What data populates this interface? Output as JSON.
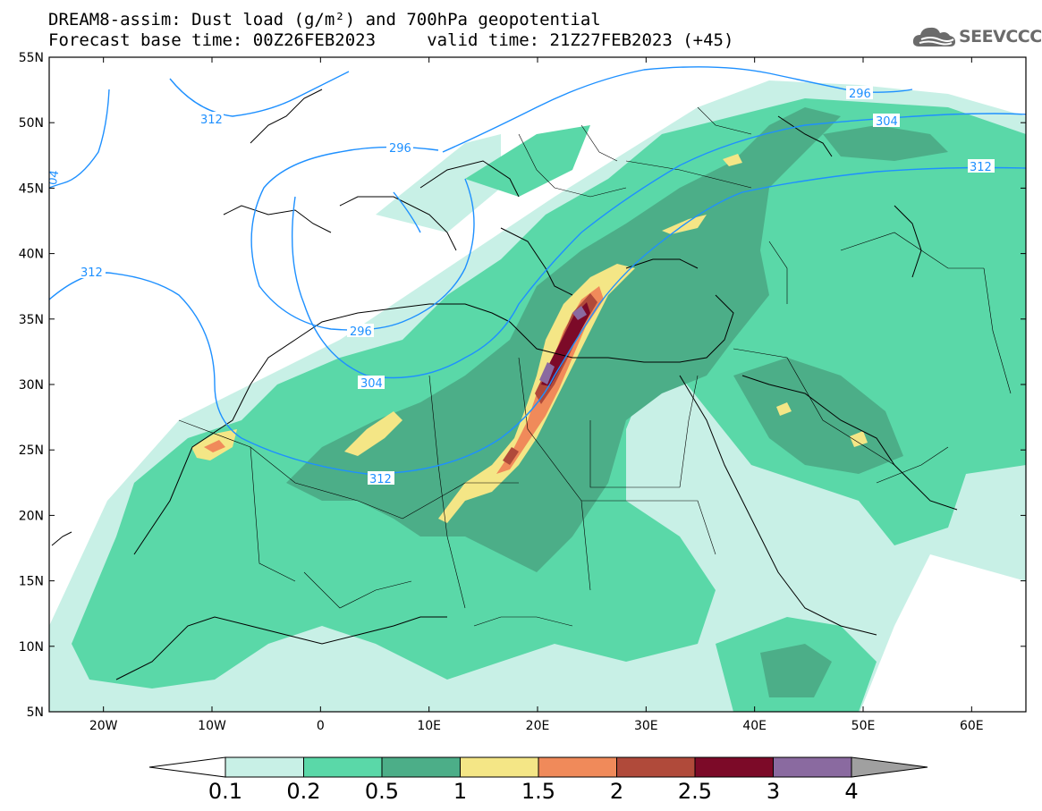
{
  "header": {
    "title": "DREAM8-assim: Dust load (g/m²) and 700hPa geopotential",
    "time_line": "Forecast base time: 00Z26FEB2023     valid time: 21Z27FEB2023 (+45)",
    "logo_text": "SEEVCCC"
  },
  "map": {
    "lon_range": [
      -25,
      65
    ],
    "lat_range": [
      5,
      55
    ],
    "lat_ticks": [
      "5N",
      "10N",
      "15N",
      "20N",
      "25N",
      "30N",
      "35N",
      "40N",
      "45N",
      "50N",
      "55N"
    ],
    "lon_ticks": [
      "20W",
      "10W",
      "0",
      "10E",
      "20E",
      "30E",
      "40E",
      "50E",
      "60E"
    ],
    "contour_color": "#1e90ff",
    "contour_labels": [
      "296",
      "304",
      "312",
      "296",
      "296",
      "304",
      "312",
      "312",
      "304",
      "312"
    ],
    "colorbar": {
      "levels": [
        "0.1",
        "0.2",
        "0.5",
        "1",
        "1.5",
        "2",
        "2.5",
        "3",
        "4"
      ],
      "colors": [
        "#c8f0e6",
        "#5ad8a8",
        "#4cae88",
        "#f4e686",
        "#f08a5a",
        "#b04a3a",
        "#7c0a28",
        "#8a6aa0"
      ],
      "under_color": "#ffffff",
      "over_color": "#a0a0a0"
    }
  }
}
